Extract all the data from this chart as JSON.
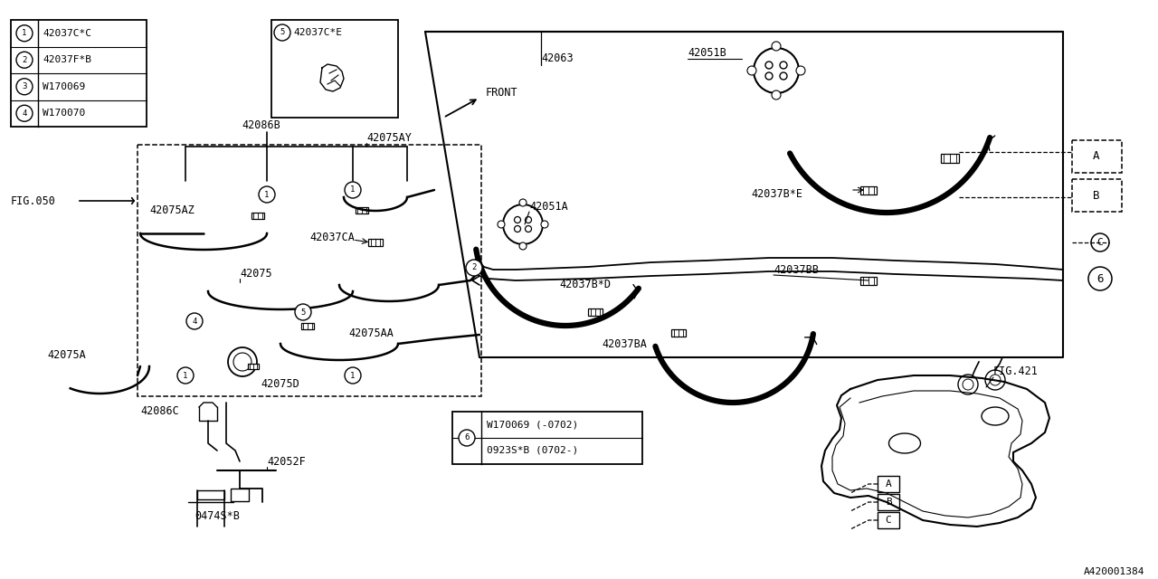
{
  "bg_color": "#ffffff",
  "line_color": "#000000",
  "diagram_id": "A420001384",
  "legend_items": [
    {
      "num": "1",
      "code": "42037C*C"
    },
    {
      "num": "2",
      "code": "42037F*B"
    },
    {
      "num": "3",
      "code": "W170069"
    },
    {
      "num": "4",
      "code": "W170070"
    }
  ],
  "legend6_items": [
    "W170069 (-0702)",
    "0923S*B (0702-)"
  ],
  "ref_labels": [
    "A",
    "B",
    "C"
  ]
}
